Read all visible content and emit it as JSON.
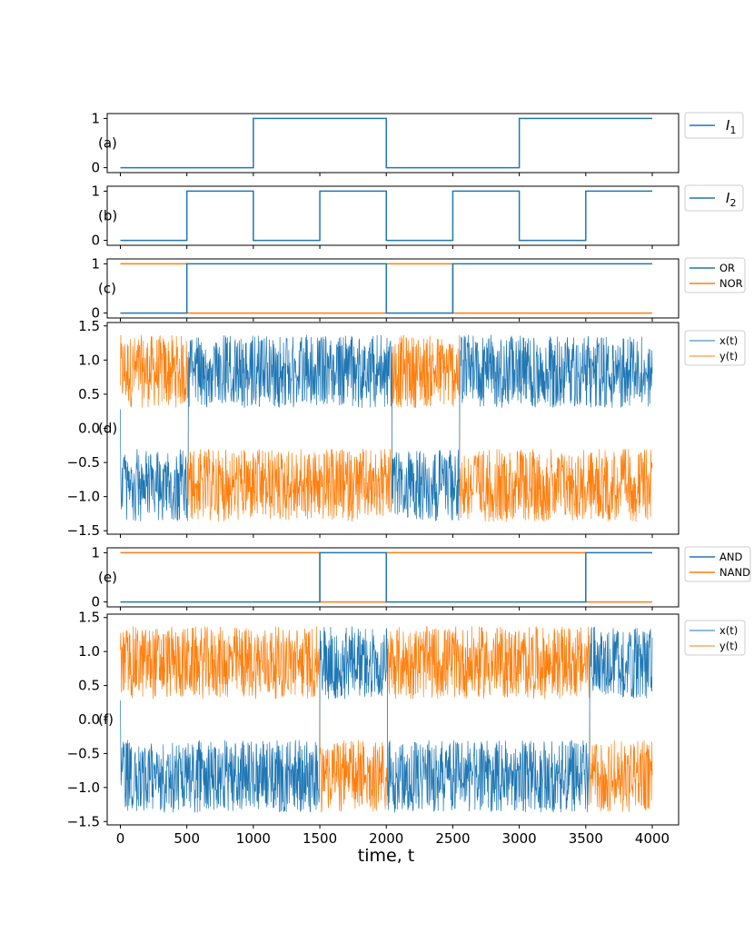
{
  "colors": {
    "blue": "#1f77b4",
    "orange": "#ff7f0e"
  },
  "chart_data": {
    "type": "line",
    "xlabel": "time, t",
    "xlim": [
      0,
      4000
    ],
    "xticks": [
      0,
      500,
      1000,
      1500,
      2000,
      2500,
      3000,
      3500,
      4000
    ],
    "panels": [
      {
        "label": "(a)",
        "yticks": [
          "0",
          "1"
        ],
        "ylim": [
          -0.1,
          1.1
        ],
        "series": [
          {
            "name": "I1",
            "legend_main": "I",
            "legend_sub": "1",
            "color": "#1f77b4",
            "steps": [
              [
                0,
                0
              ],
              [
                1000,
                1
              ],
              [
                2000,
                0
              ],
              [
                3000,
                1
              ],
              [
                4000,
                1
              ]
            ]
          }
        ]
      },
      {
        "label": "(b)",
        "yticks": [
          "0",
          "1"
        ],
        "ylim": [
          -0.1,
          1.1
        ],
        "series": [
          {
            "name": "I2",
            "legend_main": "I",
            "legend_sub": "2",
            "color": "#1f77b4",
            "steps": [
              [
                0,
                0
              ],
              [
                500,
                1
              ],
              [
                1000,
                0
              ],
              [
                1500,
                1
              ],
              [
                2000,
                0
              ],
              [
                2500,
                1
              ],
              [
                3000,
                0
              ],
              [
                3500,
                1
              ],
              [
                4000,
                1
              ]
            ]
          }
        ]
      },
      {
        "label": "(c)",
        "yticks": [
          "0",
          "1"
        ],
        "ylim": [
          -0.1,
          1.1
        ],
        "series": [
          {
            "name": "OR",
            "color": "#1f77b4",
            "steps": [
              [
                0,
                0
              ],
              [
                500,
                1
              ],
              [
                2000,
                0
              ],
              [
                2500,
                1
              ],
              [
                4000,
                1
              ]
            ]
          },
          {
            "name": "NOR",
            "color": "#ff7f0e",
            "steps": [
              [
                0,
                1
              ],
              [
                500,
                0
              ],
              [
                2000,
                1
              ],
              [
                2500,
                0
              ],
              [
                4000,
                0
              ]
            ]
          }
        ]
      },
      {
        "label": "(d)",
        "yticks": [
          "−1.5",
          "−1.0",
          "−0.5",
          "0.0",
          "0.5",
          "1.0",
          "1.5"
        ],
        "ytick_values": [
          -1.5,
          -1.0,
          -0.5,
          0.0,
          0.5,
          1.0,
          1.5
        ],
        "ylim": [
          -1.55,
          1.55
        ],
        "oscillation": {
          "amplitude_range": [
            0.3,
            1.37
          ],
          "x_positive_intervals": [
            [
              510,
              2040
            ],
            [
              2550,
              4000
            ]
          ],
          "x_negative_intervals": [
            [
              0,
              510
            ],
            [
              2040,
              2550
            ]
          ]
        },
        "series": [
          {
            "name": "x(t)",
            "color": "#1f77b4"
          },
          {
            "name": "y(t)",
            "color": "#ff7f0e"
          }
        ]
      },
      {
        "label": "(e)",
        "yticks": [
          "0",
          "1"
        ],
        "ylim": [
          -0.1,
          1.1
        ],
        "series": [
          {
            "name": "AND",
            "color": "#1f77b4",
            "steps": [
              [
                0,
                0
              ],
              [
                1500,
                1
              ],
              [
                2000,
                0
              ],
              [
                3500,
                1
              ],
              [
                4000,
                1
              ]
            ]
          },
          {
            "name": "NAND",
            "color": "#ff7f0e",
            "steps": [
              [
                0,
                1
              ],
              [
                1500,
                0
              ],
              [
                2000,
                1
              ],
              [
                3500,
                0
              ],
              [
                4000,
                0
              ]
            ]
          }
        ]
      },
      {
        "label": "(f)",
        "yticks": [
          "−1.5",
          "−1.0",
          "−0.5",
          "0.0",
          "0.5",
          "1.0",
          "1.5"
        ],
        "ytick_values": [
          -1.5,
          -1.0,
          -0.5,
          0.0,
          0.5,
          1.0,
          1.5
        ],
        "ylim": [
          -1.55,
          1.55
        ],
        "oscillation": {
          "amplitude_range": [
            0.3,
            1.37
          ],
          "x_positive_intervals": [
            [
              1500,
              2010
            ],
            [
              3530,
              4000
            ]
          ],
          "x_negative_intervals": [
            [
              0,
              1500
            ],
            [
              2010,
              3530
            ]
          ]
        },
        "series": [
          {
            "name": "x(t)",
            "color": "#1f77b4"
          },
          {
            "name": "y(t)",
            "color": "#ff7f0e"
          }
        ]
      }
    ]
  }
}
